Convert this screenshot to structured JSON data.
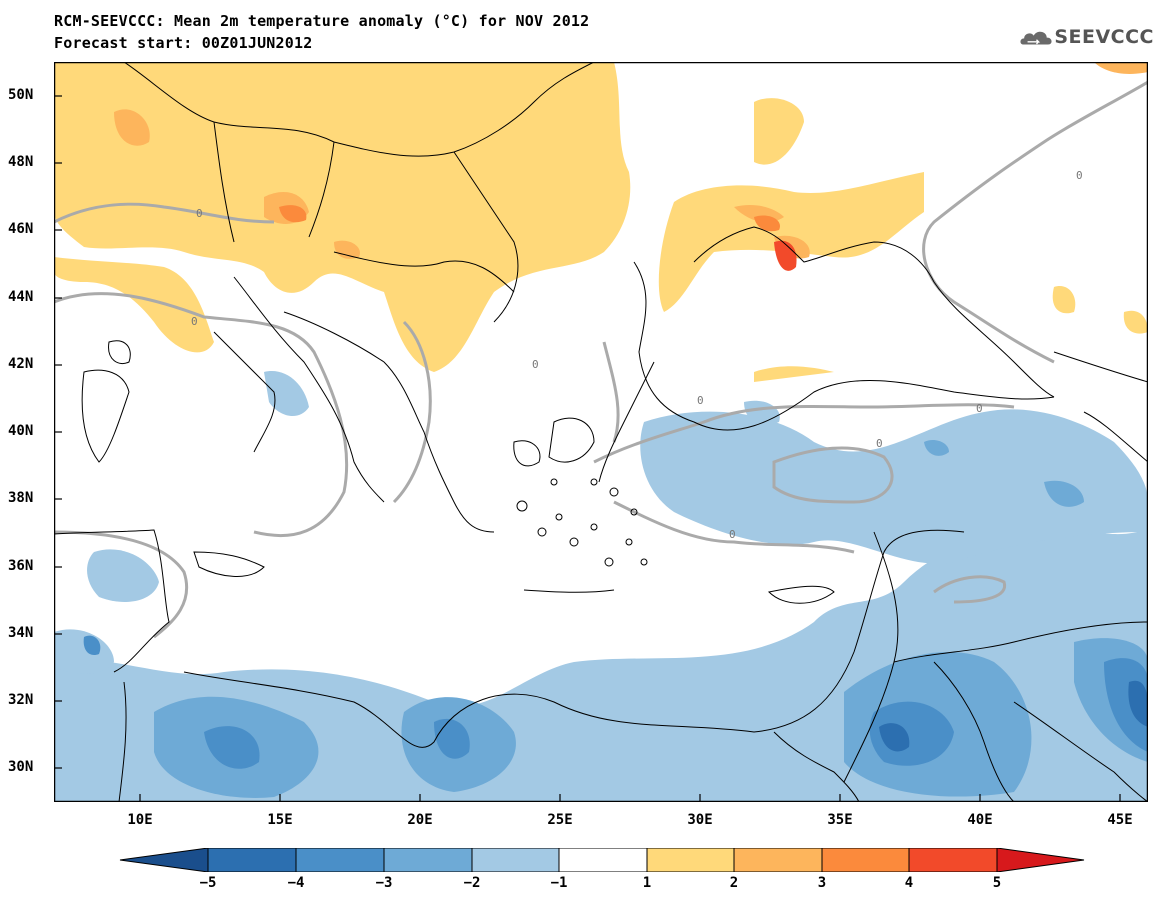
{
  "title_line1": "RCM-SEEVCCC: Mean 2m temperature anomaly (°C) for NOV 2012",
  "title_line2": "Forecast start: 00Z01JUN2012",
  "logo_text": "SEEVCCC",
  "logo_icon": "cloud-icon",
  "map": {
    "lat_ticks": [
      "50N",
      "48N",
      "46N",
      "44N",
      "42N",
      "40N",
      "38N",
      "36N",
      "34N",
      "32N",
      "30N"
    ],
    "lon_ticks": [
      "10E",
      "15E",
      "20E",
      "25E",
      "30E",
      "35E",
      "40E",
      "45E"
    ],
    "contour_label": "0"
  },
  "colorbar": {
    "labels": [
      "−5",
      "−4",
      "−3",
      "−2",
      "−1",
      "1",
      "2",
      "3",
      "4",
      "5"
    ],
    "colors": [
      "#1a4e8c",
      "#2c6fb0",
      "#4a8fc8",
      "#6eaad6",
      "#a3c9e4",
      "#ffffff",
      "#ffd97a",
      "#fdb55c",
      "#fb8a3c",
      "#f24a2a",
      "#d7191c"
    ]
  }
}
